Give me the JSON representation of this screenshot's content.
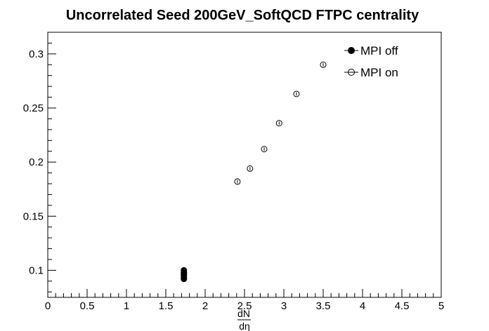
{
  "chart_data": {
    "type": "scatter",
    "title": "Uncorrelated Seed 200GeV_SoftQCD FTPC centrality",
    "xlabel": {
      "numerator": "dN",
      "denominator": "dη"
    },
    "ylabel": "",
    "xlim": [
      0,
      5
    ],
    "ylim": [
      0.075,
      0.32
    ],
    "x_ticks": [
      "0",
      "0.5",
      "1",
      "1.5",
      "2",
      "2.5",
      "3",
      "3.5",
      "4",
      "4.5",
      "5"
    ],
    "x_tick_values": [
      0,
      0.5,
      1,
      1.5,
      2,
      2.5,
      3,
      3.5,
      4,
      4.5,
      5
    ],
    "y_ticks": [
      "0.1",
      "0.15",
      "0.2",
      "0.25",
      "0.3"
    ],
    "y_tick_values": [
      0.1,
      0.15,
      0.2,
      0.25,
      0.3
    ],
    "grid": false,
    "legend_position": "top-right",
    "series": [
      {
        "name": "MPI off",
        "marker": "filled-circle",
        "color": "#000000",
        "x": [
          1.73,
          1.73,
          1.73,
          1.73,
          1.73,
          1.73,
          1.73
        ],
        "y": [
          0.1,
          0.098,
          0.097,
          0.096,
          0.095,
          0.093,
          0.092
        ],
        "yerr": [
          0.001,
          0.001,
          0.001,
          0.001,
          0.001,
          0.001,
          0.001
        ]
      },
      {
        "name": "MPI on",
        "marker": "open-circle",
        "color": "#000000",
        "x": [
          2.41,
          2.57,
          2.75,
          2.94,
          3.16,
          3.5
        ],
        "y": [
          0.182,
          0.194,
          0.212,
          0.236,
          0.263,
          0.29
        ],
        "yerr": [
          0.0015,
          0.0015,
          0.0015,
          0.0015,
          0.0015,
          0.0015
        ]
      }
    ]
  }
}
